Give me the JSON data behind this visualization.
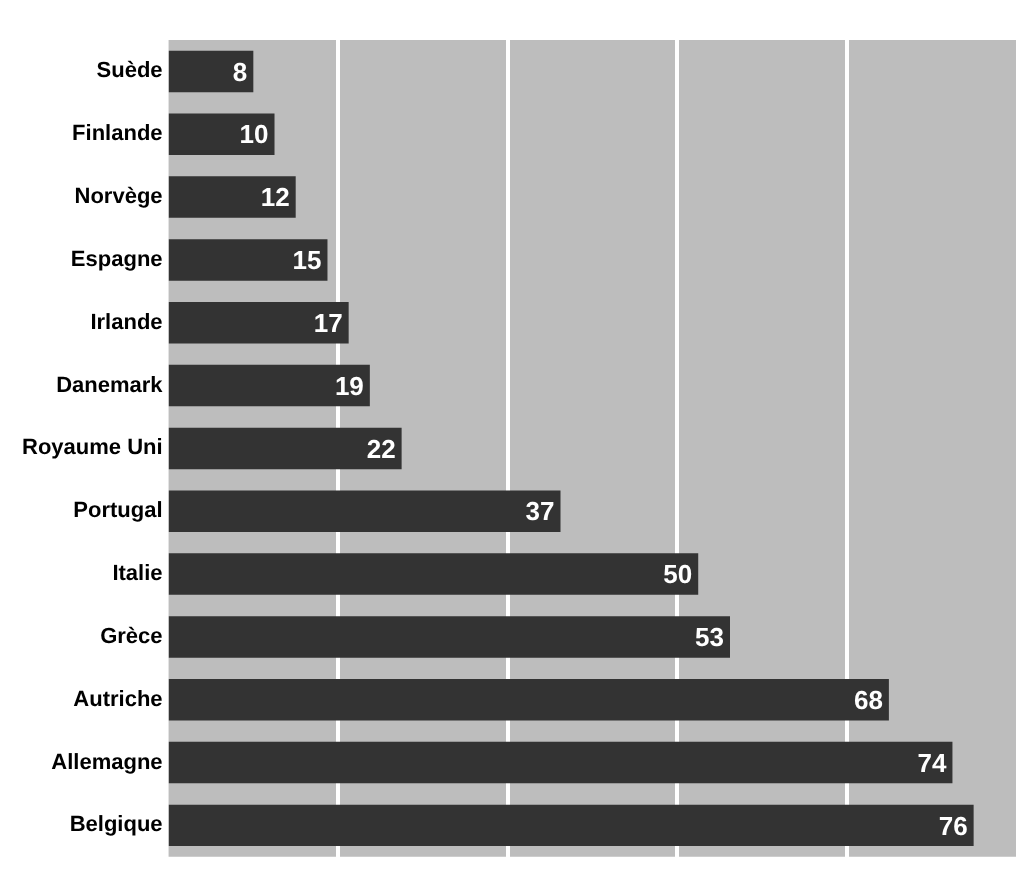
{
  "chart_data": {
    "type": "bar",
    "orientation": "horizontal",
    "categories": [
      "Suède",
      "Finlande",
      "Norvège",
      "Espagne",
      "Irlande",
      "Danemark",
      "Royaume Uni",
      "Portugal",
      "Italie",
      "Grèce",
      "Autriche",
      "Allemagne",
      "Belgique"
    ],
    "values": [
      8,
      10,
      12,
      15,
      17,
      19,
      22,
      37,
      50,
      53,
      68,
      74,
      76
    ],
    "color": "#333333",
    "xlim": [
      0,
      80
    ],
    "xticks": [
      {
        "value": 16,
        "label": null
      },
      {
        "value": 32,
        "label": null
      },
      {
        "value": 48,
        "label": null
      },
      {
        "value": 64,
        "label": null
      }
    ],
    "grid": "x",
    "data_labels": true,
    "legend": false,
    "tick_labels": "y"
  }
}
